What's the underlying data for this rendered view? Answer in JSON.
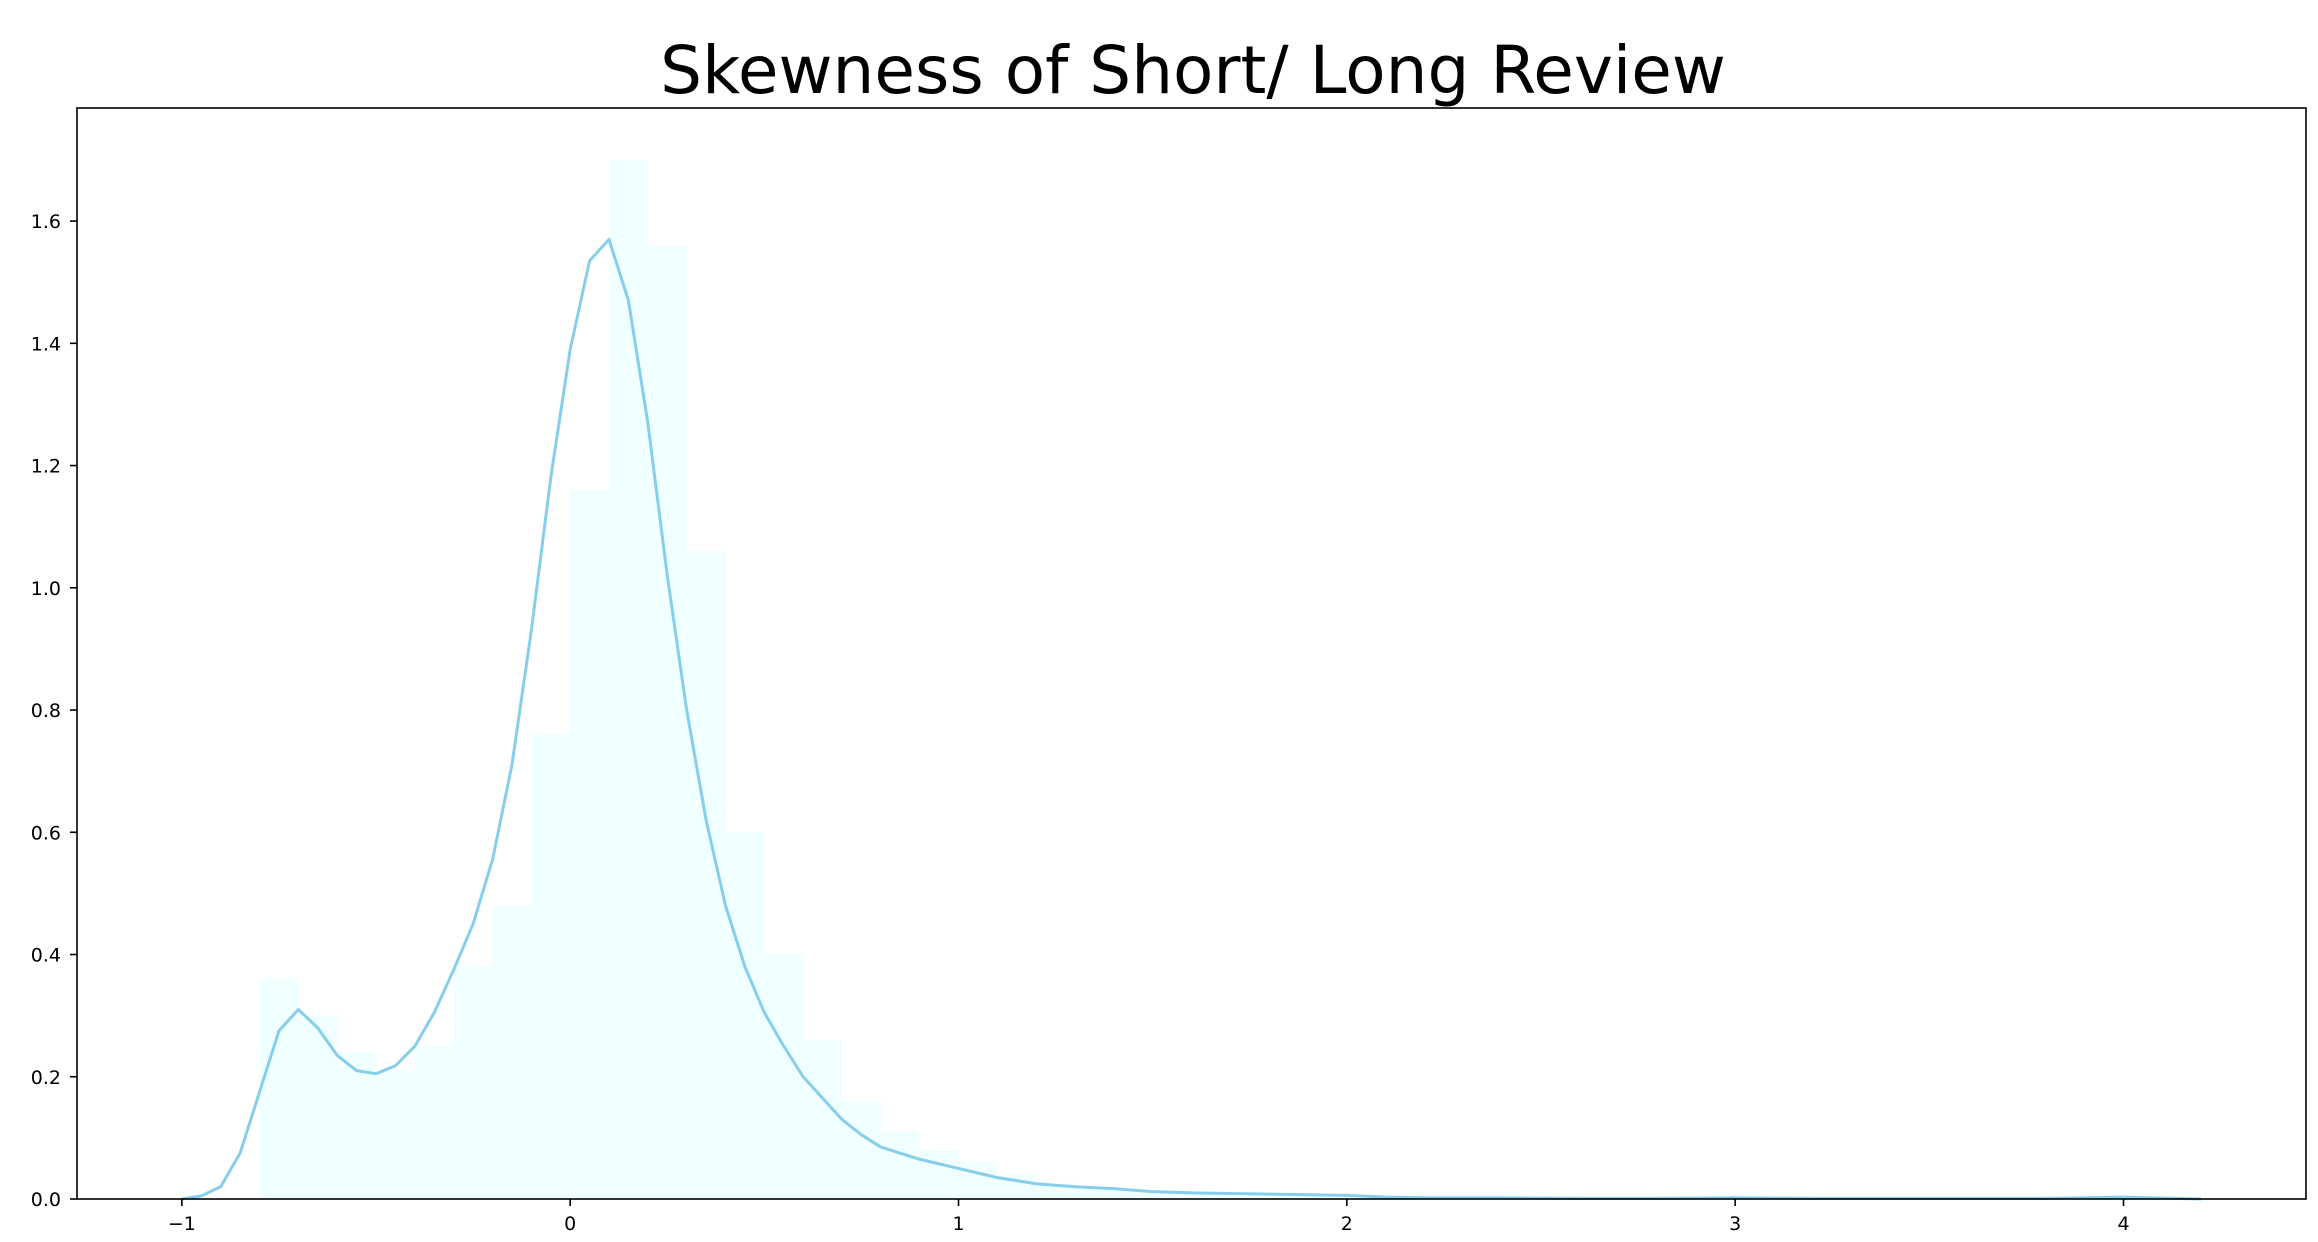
{
  "chart_data": {
    "type": "area",
    "title": "Skewness of Short/ Long Review",
    "xlabel": "",
    "ylabel": "",
    "xlim": [
      -1.27,
      4.47
    ],
    "ylim": [
      0.0,
      1.785
    ],
    "xticks": [
      -1,
      0,
      1,
      2,
      3,
      4
    ],
    "xtick_labels": [
      "−1",
      "0",
      "1",
      "2",
      "3",
      "4"
    ],
    "yticks": [
      0.0,
      0.2,
      0.4,
      0.6,
      0.8,
      1.0,
      1.2,
      1.4,
      1.6
    ],
    "ytick_labels": [
      "0.0",
      "0.2",
      "0.4",
      "0.6",
      "0.8",
      "1.0",
      "1.2",
      "1.4",
      "1.6"
    ],
    "grid": false,
    "colors": {
      "kde_line": "#87ceeb",
      "histogram_fill": "#f0ffff",
      "axes": "#000000",
      "background": "#ffffff"
    },
    "histogram": {
      "bin_edges": [
        -0.8,
        -0.7,
        -0.6,
        -0.5,
        -0.4,
        -0.3,
        -0.2,
        -0.1,
        0.0,
        0.1,
        0.2,
        0.3,
        0.4,
        0.5,
        0.6,
        0.7,
        0.8,
        0.9,
        1.0,
        1.1,
        1.2,
        1.3,
        1.4,
        1.5,
        1.6,
        1.8,
        2.0,
        2.2
      ],
      "densities": [
        0.36,
        0.3,
        0.24,
        0.21,
        0.25,
        0.38,
        0.48,
        0.76,
        1.16,
        1.7,
        1.56,
        1.06,
        0.6,
        0.4,
        0.26,
        0.16,
        0.11,
        0.08,
        0.06,
        0.04,
        0.025,
        0.02,
        0.015,
        0.012,
        0.01,
        0.008,
        0.006
      ]
    },
    "kde": {
      "x": [
        -1.0,
        -0.95,
        -0.9,
        -0.85,
        -0.8,
        -0.75,
        -0.7,
        -0.65,
        -0.6,
        -0.55,
        -0.5,
        -0.45,
        -0.4,
        -0.35,
        -0.3,
        -0.25,
        -0.2,
        -0.15,
        -0.1,
        -0.05,
        0.0,
        0.05,
        0.1,
        0.15,
        0.2,
        0.25,
        0.3,
        0.35,
        0.4,
        0.45,
        0.5,
        0.55,
        0.6,
        0.65,
        0.7,
        0.75,
        0.8,
        0.85,
        0.9,
        1.0,
        1.1,
        1.2,
        1.3,
        1.4,
        1.5,
        1.6,
        1.7,
        1.8,
        1.9,
        2.0,
        2.1,
        2.2,
        2.4,
        2.6,
        2.8,
        3.0,
        3.2,
        3.4,
        3.6,
        3.8,
        4.0,
        4.2
      ],
      "y": [
        0.0,
        0.005,
        0.02,
        0.075,
        0.175,
        0.275,
        0.31,
        0.28,
        0.235,
        0.21,
        0.205,
        0.218,
        0.25,
        0.305,
        0.375,
        0.45,
        0.555,
        0.71,
        0.93,
        1.18,
        1.39,
        1.535,
        1.57,
        1.47,
        1.27,
        1.02,
        0.8,
        0.62,
        0.48,
        0.38,
        0.305,
        0.25,
        0.2,
        0.165,
        0.13,
        0.105,
        0.085,
        0.075,
        0.065,
        0.05,
        0.035,
        0.025,
        0.02,
        0.017,
        0.012,
        0.01,
        0.009,
        0.008,
        0.007,
        0.006,
        0.003,
        0.002,
        0.002,
        0.001,
        0.001,
        0.002,
        0.001,
        0.001,
        0.001,
        0.001,
        0.003,
        0.0
      ]
    }
  }
}
